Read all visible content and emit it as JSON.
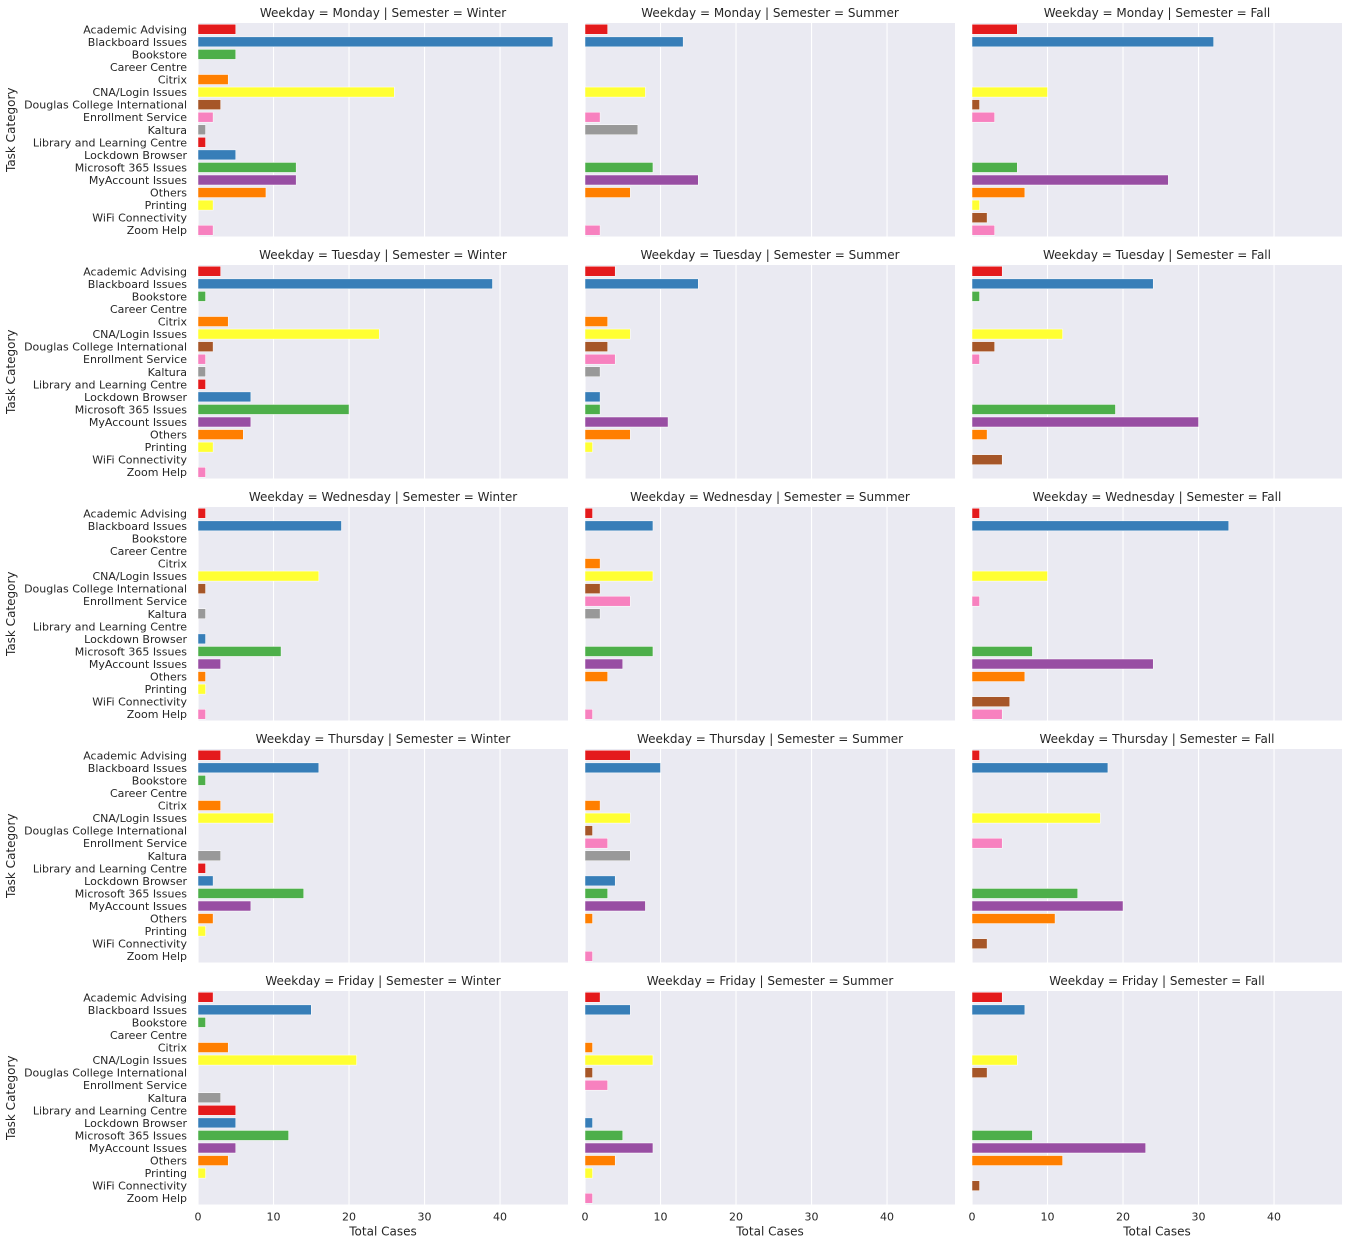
{
  "chart_data": {
    "type": "bar",
    "orientation": "horizontal",
    "facet_row_var": "Weekday",
    "facet_col_var": "Semester",
    "rows": [
      "Monday",
      "Tuesday",
      "Wednesday",
      "Thursday",
      "Friday"
    ],
    "cols": [
      "Winter",
      "Summer",
      "Fall"
    ],
    "xlabel": "Total Cases",
    "ylabel": "Task Category",
    "xlim": [
      0,
      49
    ],
    "xticks": [
      0,
      10,
      20,
      30,
      40
    ],
    "grid": true,
    "categories": [
      "Academic Advising",
      "Blackboard Issues",
      "Bookstore",
      "Career Centre",
      "Citrix",
      "CNA/Login Issues",
      "Douglas College International",
      "Enrollment Service",
      "Kaltura",
      "Library and Learning Centre",
      "Lockdown Browser",
      "Microsoft 365 Issues",
      "MyAccount Issues",
      "Others",
      "Printing",
      "WiFi Connectivity",
      "Zoom Help"
    ],
    "colors": [
      "#e41a1c",
      "#377eb8",
      "#4daf4a",
      "#984ea3",
      "#ff7f00",
      "#ffff33",
      "#a65628",
      "#f781bf",
      "#999999",
      "#e41a1c",
      "#377eb8",
      "#4daf4a",
      "#984ea3",
      "#ff7f00",
      "#ffff33",
      "#a65628",
      "#f781bf"
    ],
    "panels": [
      {
        "weekday": "Monday",
        "semester": "Winter",
        "title": "Weekday = Monday | Semester = Winter",
        "values": [
          5,
          47,
          5,
          0,
          4,
          26,
          3,
          2,
          1,
          1,
          5,
          13,
          13,
          9,
          2,
          0,
          2
        ]
      },
      {
        "weekday": "Monday",
        "semester": "Summer",
        "title": "Weekday = Monday | Semester = Summer",
        "values": [
          3,
          13,
          0,
          0,
          0,
          8,
          0,
          2,
          7,
          0,
          0,
          9,
          15,
          6,
          0,
          0,
          2
        ]
      },
      {
        "weekday": "Monday",
        "semester": "Fall",
        "title": "Weekday = Monday | Semester = Fall",
        "values": [
          6,
          32,
          0,
          0,
          0,
          10,
          1,
          3,
          0,
          0,
          0,
          6,
          26,
          7,
          1,
          2,
          3
        ]
      },
      {
        "weekday": "Tuesday",
        "semester": "Winter",
        "title": "Weekday = Tuesday | Semester = Winter",
        "values": [
          3,
          39,
          1,
          0,
          4,
          24,
          2,
          1,
          1,
          1,
          7,
          20,
          7,
          6,
          2,
          0,
          1
        ]
      },
      {
        "weekday": "Tuesday",
        "semester": "Summer",
        "title": "Weekday = Tuesday | Semester = Summer",
        "values": [
          4,
          15,
          0,
          0,
          3,
          6,
          3,
          4,
          2,
          0,
          2,
          2,
          11,
          6,
          1,
          0,
          0
        ]
      },
      {
        "weekday": "Tuesday",
        "semester": "Fall",
        "title": "Weekday = Tuesday | Semester = Fall",
        "values": [
          4,
          24,
          1,
          0,
          0,
          12,
          3,
          1,
          0,
          0,
          0,
          19,
          30,
          2,
          0,
          4,
          0
        ]
      },
      {
        "weekday": "Wednesday",
        "semester": "Winter",
        "title": "Weekday = Wednesday | Semester = Winter",
        "values": [
          1,
          19,
          0,
          0,
          0,
          16,
          1,
          0,
          1,
          0,
          1,
          11,
          3,
          1,
          1,
          0,
          1
        ]
      },
      {
        "weekday": "Wednesday",
        "semester": "Summer",
        "title": "Weekday = Wednesday | Semester = Summer",
        "values": [
          1,
          9,
          0,
          0,
          2,
          9,
          2,
          6,
          2,
          0,
          0,
          9,
          5,
          3,
          0,
          0,
          1
        ]
      },
      {
        "weekday": "Wednesday",
        "semester": "Fall",
        "title": "Weekday = Wednesday | Semester = Fall",
        "values": [
          1,
          34,
          0,
          0,
          0,
          10,
          0,
          1,
          0,
          0,
          0,
          8,
          24,
          7,
          0,
          5,
          4
        ]
      },
      {
        "weekday": "Thursday",
        "semester": "Winter",
        "title": "Weekday = Thursday | Semester = Winter",
        "values": [
          3,
          16,
          1,
          0,
          3,
          10,
          0,
          0,
          3,
          1,
          2,
          14,
          7,
          2,
          1,
          0,
          0
        ]
      },
      {
        "weekday": "Thursday",
        "semester": "Summer",
        "title": "Weekday = Thursday | Semester = Summer",
        "values": [
          6,
          10,
          0,
          0,
          2,
          6,
          1,
          3,
          6,
          0,
          4,
          3,
          8,
          1,
          0,
          0,
          1
        ]
      },
      {
        "weekday": "Thursday",
        "semester": "Fall",
        "title": "Weekday = Thursday | Semester = Fall",
        "values": [
          1,
          18,
          0,
          0,
          0,
          17,
          0,
          4,
          0,
          0,
          0,
          14,
          20,
          11,
          0,
          2,
          0
        ]
      },
      {
        "weekday": "Friday",
        "semester": "Winter",
        "title": "Weekday = Friday | Semester = Winter",
        "values": [
          2,
          15,
          1,
          0,
          4,
          21,
          0,
          0,
          3,
          5,
          5,
          12,
          5,
          4,
          1,
          0,
          0
        ]
      },
      {
        "weekday": "Friday",
        "semester": "Summer",
        "title": "Weekday = Friday | Semester = Summer",
        "values": [
          2,
          6,
          0,
          0,
          1,
          9,
          1,
          3,
          0,
          0,
          1,
          5,
          9,
          4,
          1,
          0,
          1
        ]
      },
      {
        "weekday": "Friday",
        "semester": "Fall",
        "title": "Weekday = Friday | Semester = Fall",
        "values": [
          4,
          7,
          0,
          0,
          0,
          6,
          2,
          0,
          0,
          0,
          0,
          8,
          23,
          12,
          0,
          1,
          0
        ]
      }
    ]
  }
}
